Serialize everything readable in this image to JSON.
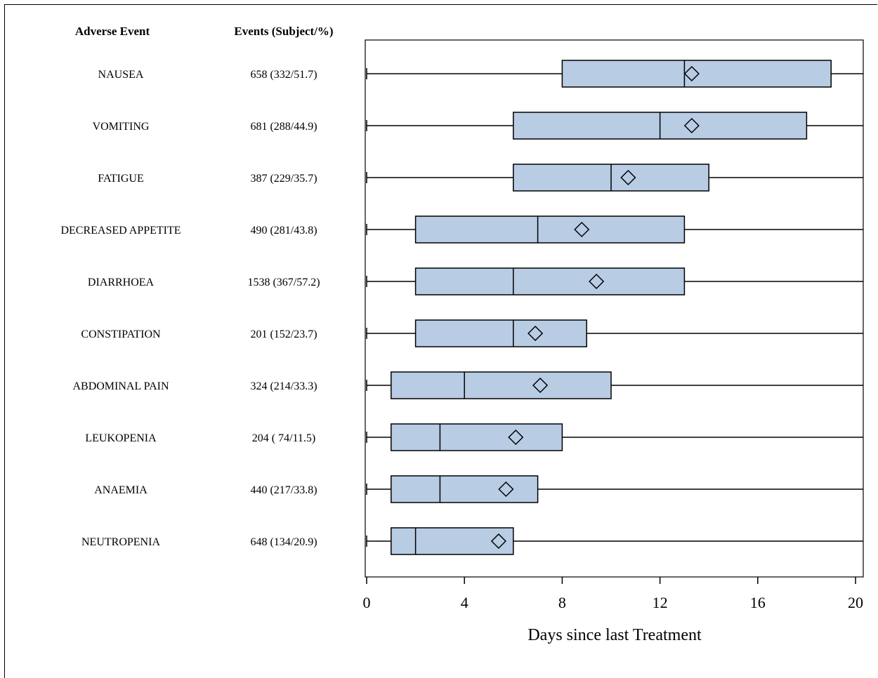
{
  "chart_data": {
    "type": "box",
    "columns": {
      "label_header": "Adverse Event",
      "count_header": "Events (Subject/%)"
    },
    "xlabel": "Days since last Treatment",
    "xlim": [
      0,
      20
    ],
    "xticks": [
      "0",
      "4",
      "8",
      "12",
      "16",
      "20"
    ],
    "box_fill": "#b8cce4",
    "rows": [
      {
        "event": "NAUSEA",
        "count": "658 (332/51.7)",
        "min": 0,
        "q1": 8,
        "median": 13,
        "q3": 19,
        "max": 20,
        "mean": 13.3
      },
      {
        "event": "VOMITING",
        "count": "681 (288/44.9)",
        "min": 0,
        "q1": 6,
        "median": 12,
        "q3": 18,
        "max": 20,
        "mean": 13.3
      },
      {
        "event": "FATIGUE",
        "count": "387 (229/35.7)",
        "min": 0,
        "q1": 6,
        "median": 10,
        "q3": 14,
        "max": 20,
        "mean": 10.7
      },
      {
        "event": "DECREASED APPETITE",
        "count": "490 (281/43.8)",
        "min": 0,
        "q1": 2,
        "median": 7,
        "q3": 13,
        "max": 20,
        "mean": 8.8
      },
      {
        "event": "DIARRHOEA",
        "count": "1538 (367/57.2)",
        "min": 0,
        "q1": 2,
        "median": 6,
        "q3": 13,
        "max": 20,
        "mean": 9.4
      },
      {
        "event": "CONSTIPATION",
        "count": "201 (152/23.7)",
        "min": 0,
        "q1": 2,
        "median": 6,
        "q3": 9,
        "max": 20,
        "mean": 6.9
      },
      {
        "event": "ABDOMINAL PAIN",
        "count": "324 (214/33.3)",
        "min": 0,
        "q1": 1,
        "median": 4,
        "q3": 10,
        "max": 20,
        "mean": 7.1
      },
      {
        "event": "LEUKOPENIA",
        "count": "204 ( 74/11.5)",
        "min": 0,
        "q1": 1,
        "median": 3,
        "q3": 8,
        "max": 20,
        "mean": 6.1
      },
      {
        "event": "ANAEMIA",
        "count": "440 (217/33.8)",
        "min": 0,
        "q1": 1,
        "median": 3,
        "q3": 7,
        "max": 20,
        "mean": 5.7
      },
      {
        "event": "NEUTROPENIA",
        "count": "648 (134/20.9)",
        "min": 0,
        "q1": 1,
        "median": 2,
        "q3": 6,
        "max": 20,
        "mean": 5.4
      }
    ]
  }
}
